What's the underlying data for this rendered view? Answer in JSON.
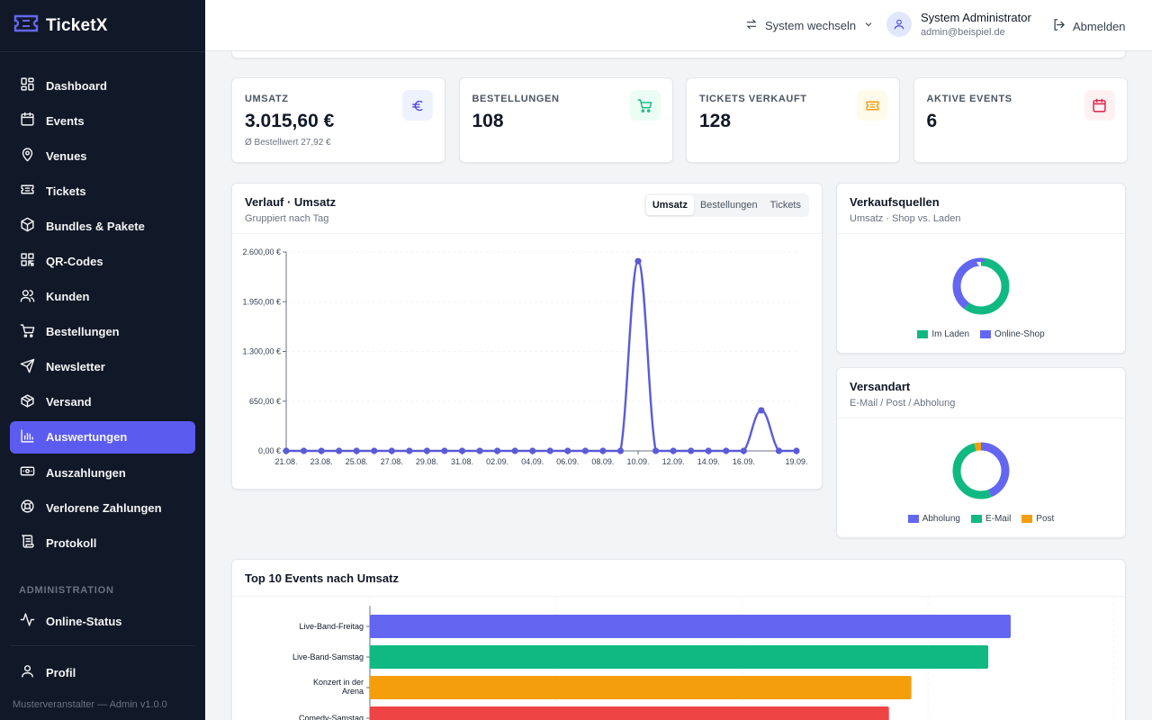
{
  "brand": {
    "name": "TicketX"
  },
  "nav": [
    {
      "label": "Dashboard",
      "icon": "dashboard-icon"
    },
    {
      "label": "Events",
      "icon": "calendar-icon"
    },
    {
      "label": "Venues",
      "icon": "map-pin-icon"
    },
    {
      "label": "Tickets",
      "icon": "ticket-icon"
    },
    {
      "label": "Bundles & Pakete",
      "icon": "package-icon"
    },
    {
      "label": "QR-Codes",
      "icon": "qr-code-icon"
    },
    {
      "label": "Kunden",
      "icon": "users-icon"
    },
    {
      "label": "Bestellungen",
      "icon": "cart-icon"
    },
    {
      "label": "Newsletter",
      "icon": "send-icon"
    },
    {
      "label": "Versand",
      "icon": "box-icon"
    },
    {
      "label": "Auswertungen",
      "icon": "bar-chart-icon",
      "active": true
    },
    {
      "label": "Auszahlungen",
      "icon": "banknote-icon"
    },
    {
      "label": "Verlorene Zahlungen",
      "icon": "lifebuoy-icon"
    },
    {
      "label": "Protokoll",
      "icon": "scroll-icon"
    }
  ],
  "admin_section": {
    "label": "ADMINISTRATION",
    "items": [
      {
        "label": "Online-Status",
        "icon": "activity-icon"
      }
    ]
  },
  "profile": {
    "label": "Profil",
    "icon": "user-icon"
  },
  "footer": "Musterveranstalter — Admin v1.0.0",
  "topbar": {
    "switch_label": "System wechseln",
    "user_name": "System Administrator",
    "user_email": "admin@beispiel.de",
    "logout_label": "Abmelden"
  },
  "kpis": [
    {
      "label": "UMSATZ",
      "value": "3.015,60 €",
      "sub": "Ø Bestellwert 27,92 €",
      "icon": "euro-icon",
      "color": "#4f46e5",
      "bg": "#eef2ff"
    },
    {
      "label": "BESTELLUNGEN",
      "value": "108",
      "sub": "",
      "icon": "cart-icon",
      "color": "#10b981",
      "bg": "#ecfdf5"
    },
    {
      "label": "TICKETS VERKAUFT",
      "value": "128",
      "sub": "",
      "icon": "ticket-icon",
      "color": "#f59e0b",
      "bg": "#fffbeb"
    },
    {
      "label": "AKTIVE EVENTS",
      "value": "6",
      "sub": "",
      "icon": "calendar-icon",
      "color": "#e11d48",
      "bg": "#fff1f2"
    }
  ],
  "trend": {
    "title": "Verlauf · Umsatz",
    "subtitle": "Gruppiert nach Tag",
    "tabs": [
      "Umsatz",
      "Bestellungen",
      "Tickets"
    ],
    "active_tab": "Umsatz"
  },
  "sources": {
    "title": "Verkaufsquellen",
    "subtitle": "Umsatz · Shop vs. Laden"
  },
  "shipping": {
    "title": "Versandart",
    "subtitle": "E-Mail / Post / Abholung"
  },
  "top_events": {
    "title": "Top 10 Events nach Umsatz"
  },
  "chart_data": [
    {
      "type": "line",
      "title": "Verlauf · Umsatz",
      "color": "#5b5bd6",
      "x": [
        "21.08.",
        "22.08.",
        "23.08.",
        "24.08.",
        "25.08.",
        "26.08.",
        "27.08.",
        "28.08.",
        "29.08.",
        "30.08.",
        "31.08.",
        "01.09.",
        "02.09.",
        "03.09.",
        "04.09.",
        "05.09.",
        "06.09.",
        "07.09.",
        "08.09.",
        "09.09.",
        "10.09.",
        "11.09.",
        "12.09.",
        "13.09.",
        "14.09.",
        "15.09.",
        "16.09.",
        "17.09.",
        "18.09.",
        "19.09."
      ],
      "tick_labels": [
        "21.08.",
        "23.08.",
        "25.08.",
        "27.08.",
        "29.08.",
        "31.08.",
        "02.09.",
        "04.09.",
        "06.09.",
        "08.09.",
        "10.09.",
        "12.09.",
        "14.09.",
        "16.09.",
        "19.09."
      ],
      "y": [
        0,
        0,
        0,
        0,
        0,
        0,
        0,
        0,
        0,
        0,
        0,
        0,
        0,
        0,
        0,
        0,
        0,
        0,
        0,
        0,
        2480,
        0,
        0,
        0,
        0,
        0,
        0,
        530,
        0,
        0
      ],
      "ylim": [
        0,
        2600
      ],
      "yticks": [
        "0,00 €",
        "650,00 €",
        "1.300,00 €",
        "1.950,00 €",
        "2.600,00 €"
      ]
    },
    {
      "type": "pie",
      "title": "Verkaufsquellen",
      "series": [
        {
          "name": "Im Laden",
          "value": 60,
          "color": "#10b981"
        },
        {
          "name": "Online-Shop",
          "value": 40,
          "color": "#6366f1"
        }
      ]
    },
    {
      "type": "pie",
      "title": "Versandart",
      "series": [
        {
          "name": "Abholung",
          "value": 44,
          "color": "#6366f1"
        },
        {
          "name": "E-Mail",
          "value": 52,
          "color": "#10b981"
        },
        {
          "name": "Post",
          "value": 4,
          "color": "#f59e0b"
        }
      ]
    },
    {
      "type": "bar",
      "title": "Top 10 Events nach Umsatz",
      "orientation": "horizontal",
      "categories": [
        "Live-Band-Freitag",
        "Live-Band-Samstag",
        "Konzert in der Arena",
        "Comedy-Samstag"
      ],
      "values": [
        100,
        96.5,
        84.5,
        81
      ],
      "colors": [
        "#6366f1",
        "#10b981",
        "#f59e0b",
        "#ef4444"
      ]
    }
  ]
}
